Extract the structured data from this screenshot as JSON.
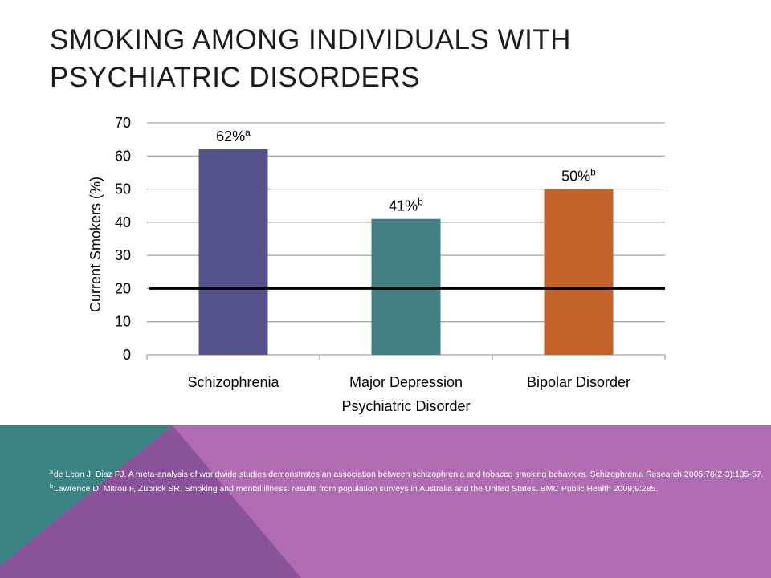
{
  "slide": {
    "title": "Smoking among individuals with psychiatric disorders"
  },
  "colors": {
    "band_purple": "#b06cb3",
    "band_teal": "#3c8383",
    "band_dark_purple": "#8a5399",
    "footnote_text": "#ffffff"
  },
  "chart_data": {
    "type": "bar",
    "title": "",
    "xlabel": "Psychiatric Disorder",
    "ylabel": "Current Smokers (%)",
    "ylim": [
      0,
      70
    ],
    "yticks": [
      0,
      10,
      20,
      30,
      40,
      50,
      60,
      70
    ],
    "grid": true,
    "categories": [
      "Schizophrenia",
      "Major Depression",
      "Bipolar Disorder"
    ],
    "values": [
      62,
      41,
      50
    ],
    "bar_colors": [
      "#54528a",
      "#427f82",
      "#c3622b"
    ],
    "data_labels": [
      {
        "text": "62%",
        "sup": "a"
      },
      {
        "text": "41%",
        "sup": "b"
      },
      {
        "text": "50%",
        "sup": "b"
      }
    ],
    "reference_line": {
      "value": 20,
      "color": "#000000"
    }
  },
  "footnotes": [
    {
      "sup": "a",
      "text": "de Leon J, Diaz FJ. A meta-analysis of worldwide studies demonstrates an association between schizophrenia and tobacco smoking behaviors. Schizophrenia Research 2005;76(2-3):135-57."
    },
    {
      "sup": "b",
      "text": "Lawrence D, Mitrou F, Zubrick SR. Smoking and mental illness: results from population surveys in Australia and the United States. BMC Public Health 2009;9:285."
    }
  ]
}
